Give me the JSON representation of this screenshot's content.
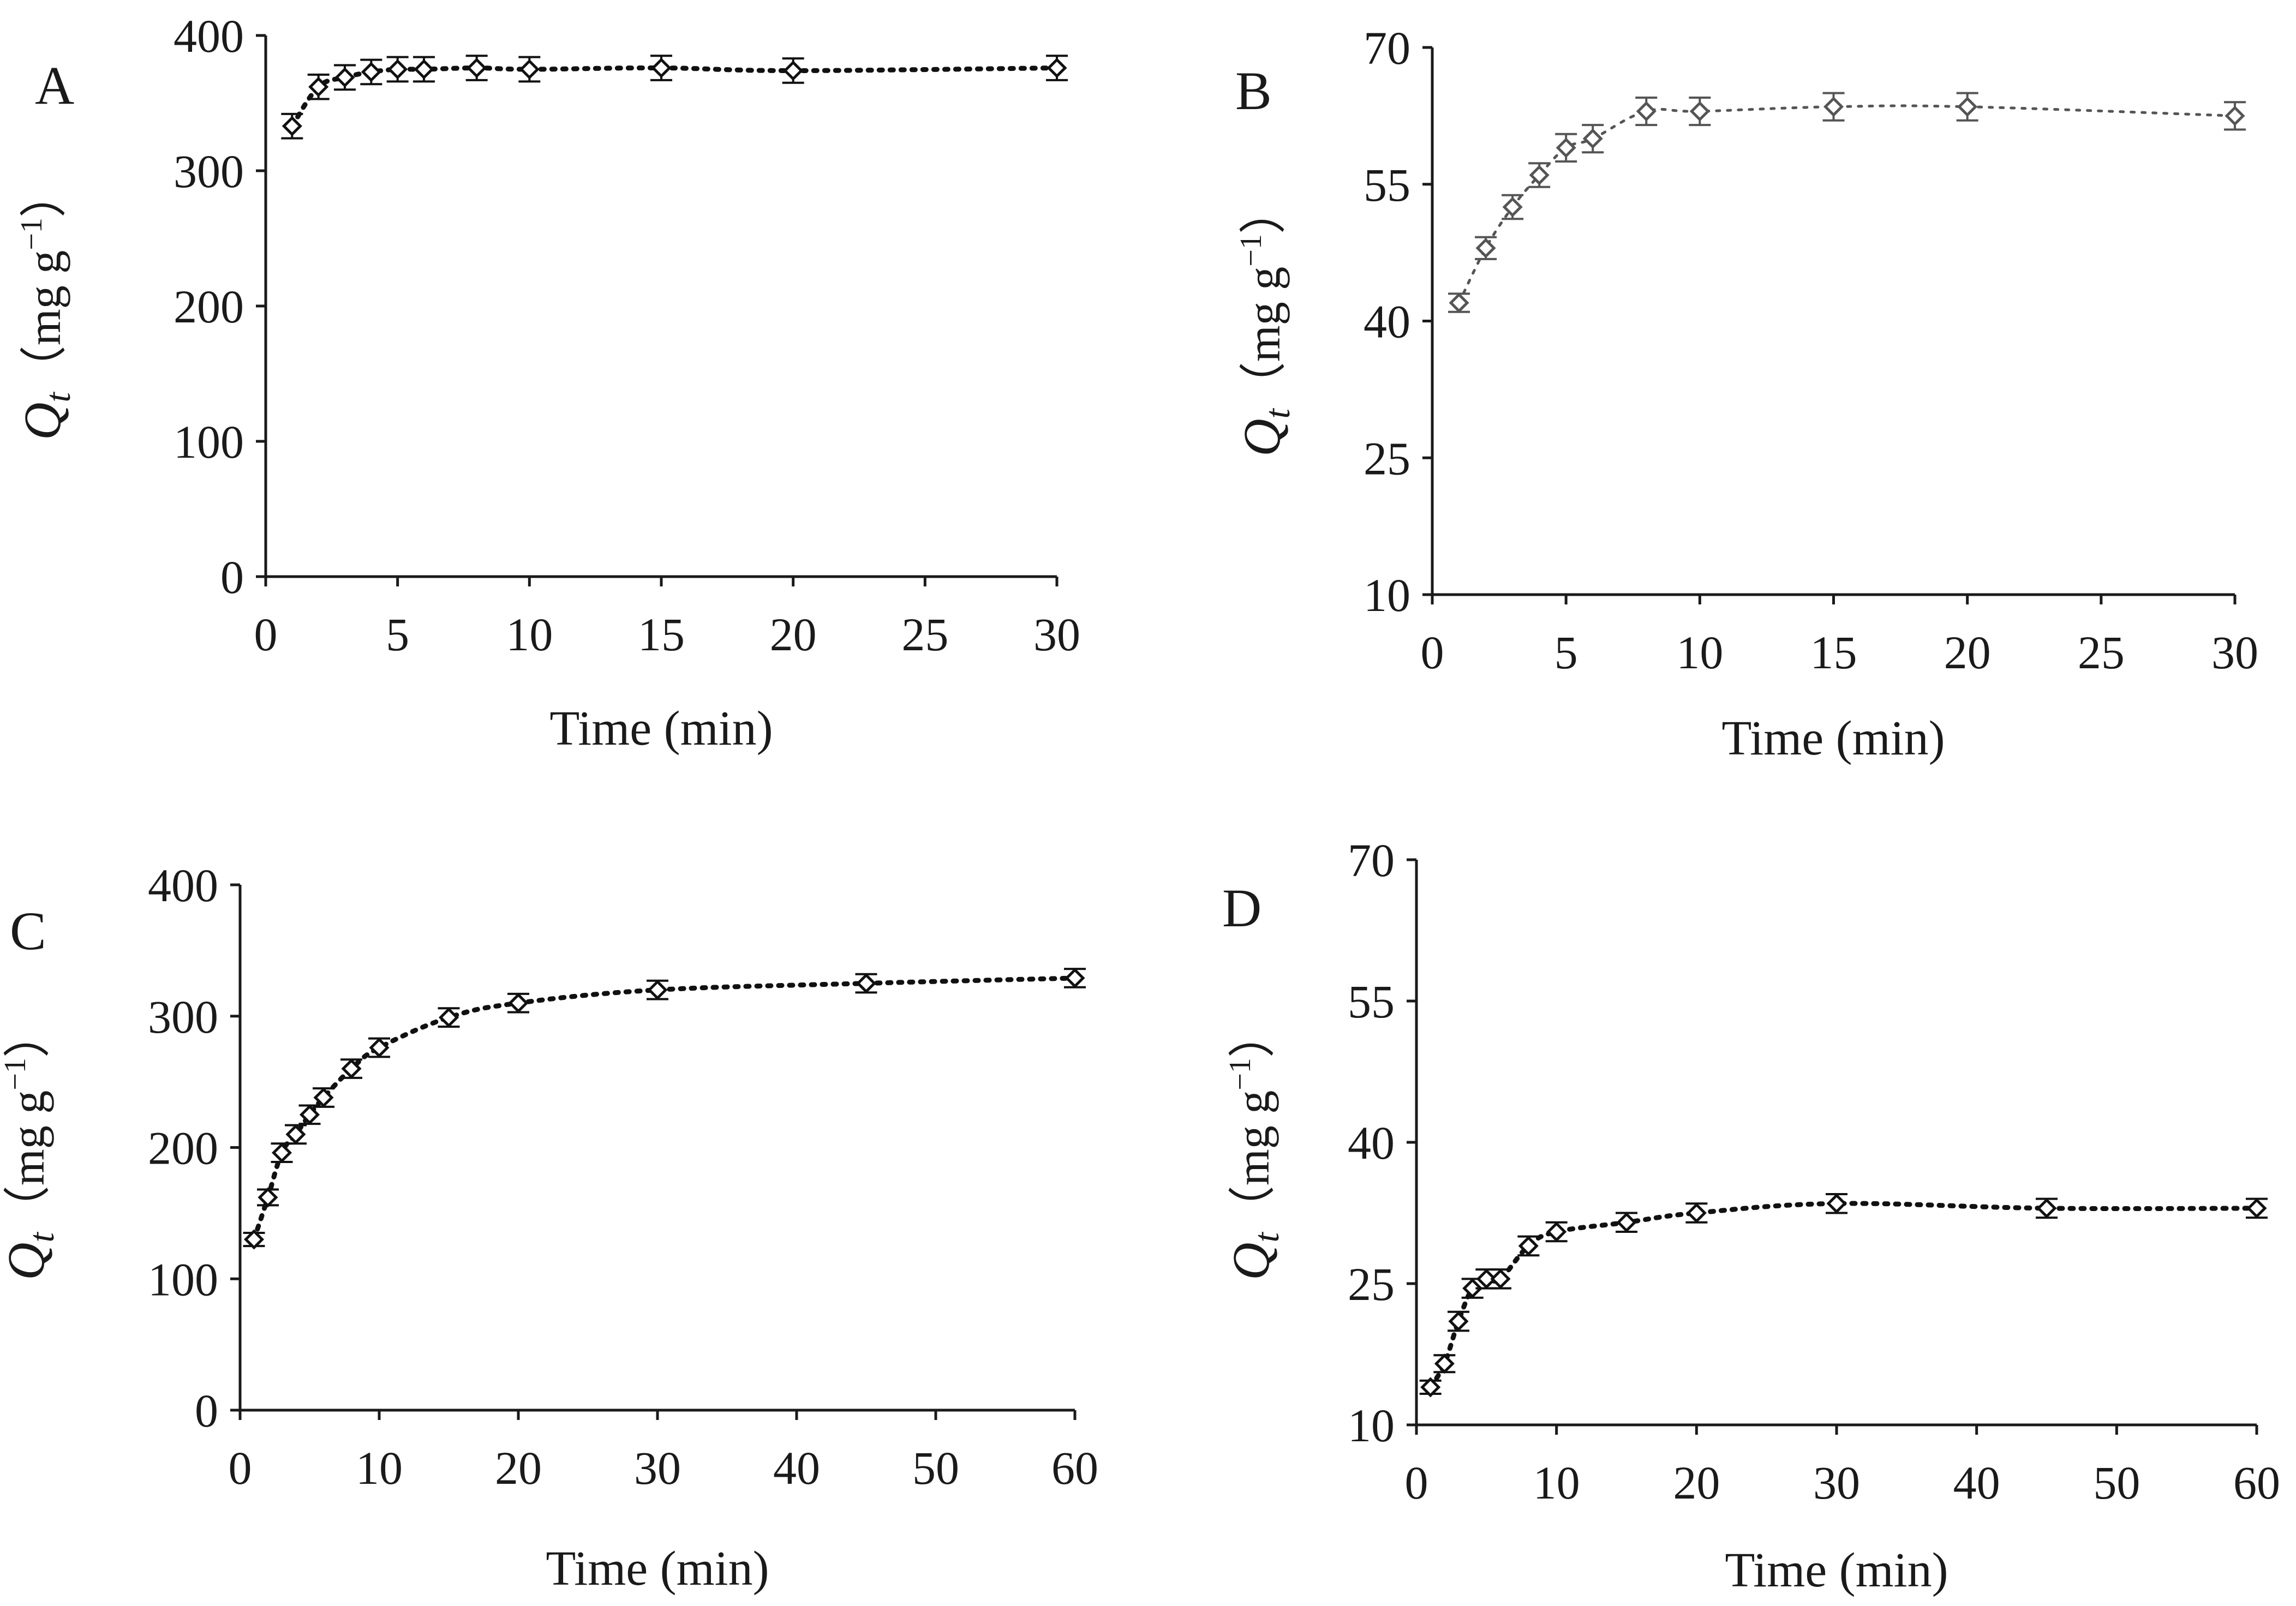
{
  "chart_data": [
    {
      "type": "scatter",
      "panel": "A",
      "title": "",
      "xlabel": "Time (min)",
      "ylabel": "Qt（mg g−1）",
      "ylabel_parts": {
        "q": "Q",
        "sub": "t",
        "open": "（",
        "unit_main": "mg g",
        "unit_exp": "−1",
        "close": "）"
      },
      "xlim": [
        0,
        30
      ],
      "ylim": [
        0,
        400
      ],
      "xticks": [
        0,
        5,
        10,
        15,
        20,
        25,
        30
      ],
      "yticks": [
        0,
        100,
        200,
        300,
        400
      ],
      "grid": false,
      "line_color": "#111111",
      "series": [
        {
          "name": "Qt",
          "x": [
            1,
            2,
            3,
            4,
            5,
            6,
            8,
            10,
            15,
            20,
            30
          ],
          "y": [
            333,
            362,
            369,
            373,
            375,
            375,
            376,
            375,
            376,
            374,
            376
          ],
          "error": [
            9,
            9,
            9,
            9,
            9,
            9,
            9,
            9,
            9,
            9,
            9
          ]
        }
      ]
    },
    {
      "type": "scatter",
      "panel": "B",
      "title": "",
      "xlabel": "Time (min)",
      "ylabel": "Qt（mg g−1）",
      "ylabel_parts": {
        "q": "Q",
        "sub": "t",
        "open": "（",
        "unit_main": "mg g",
        "unit_exp": "−1",
        "close": "）"
      },
      "xlim": [
        0,
        30
      ],
      "ylim": [
        10,
        70
      ],
      "xticks": [
        0,
        5,
        10,
        15,
        20,
        25,
        30
      ],
      "yticks": [
        10,
        25,
        40,
        55,
        70
      ],
      "grid": false,
      "line_color": "#555555",
      "series": [
        {
          "name": "Qt",
          "x": [
            1,
            2,
            3,
            4,
            5,
            6,
            8,
            10,
            15,
            20,
            30
          ],
          "y": [
            42,
            48,
            52.5,
            56,
            59,
            60,
            63,
            63,
            63.5,
            63.5,
            62.5
          ],
          "error": [
            1,
            1.2,
            1.3,
            1.3,
            1.5,
            1.5,
            1.5,
            1.5,
            1.5,
            1.5,
            1.5
          ]
        }
      ]
    },
    {
      "type": "scatter",
      "panel": "C",
      "title": "",
      "xlabel": "Time (min)",
      "ylabel": "Qt（mg g−1）",
      "ylabel_parts": {
        "q": "Q",
        "sub": "t",
        "open": "（",
        "unit_main": "mg g",
        "unit_exp": "−1",
        "close": "）"
      },
      "xlim": [
        0,
        60
      ],
      "ylim": [
        0,
        400
      ],
      "xticks": [
        0,
        10,
        20,
        30,
        40,
        50,
        60
      ],
      "yticks": [
        0,
        100,
        200,
        300,
        400
      ],
      "grid": false,
      "line_color": "#111111",
      "series": [
        {
          "name": "Qt",
          "x": [
            1,
            2,
            3,
            4,
            5,
            6,
            8,
            10,
            15,
            20,
            30,
            45,
            60
          ],
          "y": [
            130,
            162,
            196,
            210,
            225,
            238,
            260,
            276,
            299,
            310,
            320,
            325,
            329
          ],
          "error": [
            5,
            6,
            7,
            7,
            7,
            7,
            7,
            7,
            7,
            7,
            7,
            7,
            7
          ]
        }
      ]
    },
    {
      "type": "scatter",
      "panel": "D",
      "title": "",
      "xlabel": "Time (min)",
      "ylabel": "Qt（mg g−1）",
      "ylabel_parts": {
        "q": "Q",
        "sub": "t",
        "open": "（",
        "unit_main": "mg g",
        "unit_exp": "−1",
        "close": "）"
      },
      "xlim": [
        0,
        60
      ],
      "ylim": [
        10,
        70
      ],
      "xticks": [
        0,
        10,
        20,
        30,
        40,
        50,
        60
      ],
      "yticks": [
        10,
        25,
        40,
        55,
        70
      ],
      "grid": false,
      "line_color": "#111111",
      "series": [
        {
          "name": "Qt",
          "x": [
            1,
            2,
            3,
            4,
            5,
            6,
            8,
            10,
            15,
            20,
            30,
            45,
            60
          ],
          "y": [
            14,
            16.5,
            21,
            24.5,
            25.5,
            25.5,
            29,
            30.5,
            31.5,
            32.5,
            33.5,
            33,
            33
          ],
          "error": [
            0.7,
            0.9,
            1,
            1,
            1,
            1,
            1,
            1,
            1,
            1,
            1,
            1,
            1
          ]
        }
      ]
    }
  ]
}
